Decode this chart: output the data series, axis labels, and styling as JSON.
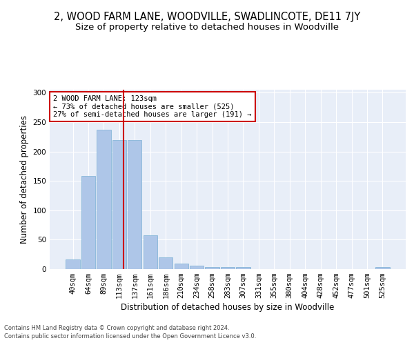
{
  "title": "2, WOOD FARM LANE, WOODVILLE, SWADLINCOTE, DE11 7JY",
  "subtitle": "Size of property relative to detached houses in Woodville",
  "xlabel": "Distribution of detached houses by size in Woodville",
  "ylabel": "Number of detached properties",
  "categories": [
    "40sqm",
    "64sqm",
    "89sqm",
    "113sqm",
    "137sqm",
    "161sqm",
    "186sqm",
    "210sqm",
    "234sqm",
    "258sqm",
    "283sqm",
    "307sqm",
    "331sqm",
    "355sqm",
    "380sqm",
    "404sqm",
    "428sqm",
    "452sqm",
    "477sqm",
    "501sqm",
    "525sqm"
  ],
  "values": [
    17,
    158,
    237,
    219,
    219,
    57,
    20,
    9,
    6,
    3,
    4,
    4,
    0,
    0,
    0,
    0,
    0,
    0,
    0,
    0,
    3
  ],
  "bar_color": "#aec6e8",
  "bar_edgecolor": "#7ab0d4",
  "vline_x": 3.27,
  "vline_color": "#cc0000",
  "annotation_text": "2 WOOD FARM LANE: 123sqm\n← 73% of detached houses are smaller (525)\n27% of semi-detached houses are larger (191) →",
  "annotation_box_color": "#ffffff",
  "annotation_box_edgecolor": "#cc0000",
  "ylim": [
    0,
    305
  ],
  "yticks": [
    0,
    50,
    100,
    150,
    200,
    250,
    300
  ],
  "background_color": "#e8eef8",
  "footer_line1": "Contains HM Land Registry data © Crown copyright and database right 2024.",
  "footer_line2": "Contains public sector information licensed under the Open Government Licence v3.0.",
  "title_fontsize": 10.5,
  "subtitle_fontsize": 9.5,
  "axis_label_fontsize": 8.5,
  "tick_fontsize": 7.5,
  "annotation_fontsize": 7.5
}
